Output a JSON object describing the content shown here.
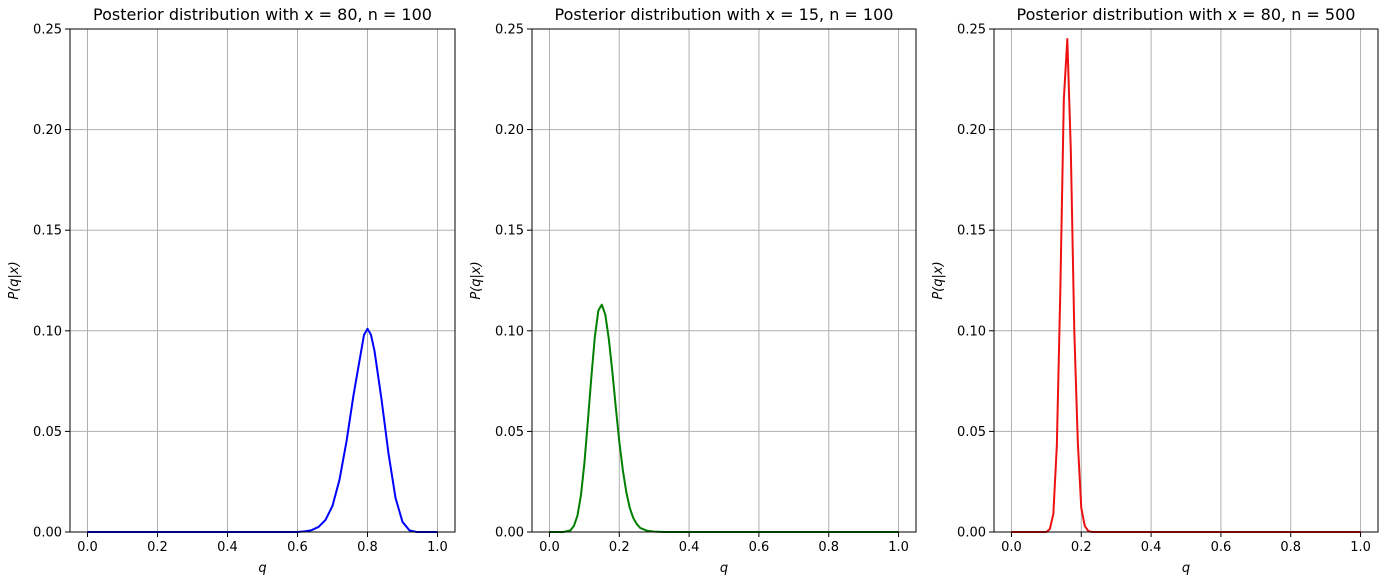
{
  "chart_data": [
    {
      "type": "line",
      "title": "Posterior distribution with x = 80, n = 100",
      "xlabel": "q",
      "ylabel": "P(q|x)",
      "xlim": [
        -0.05,
        1.05
      ],
      "ylim": [
        0,
        0.25
      ],
      "xticks": [
        "0.0",
        "0.2",
        "0.4",
        "0.6",
        "0.8",
        "1.0"
      ],
      "yticks": [
        "0.00",
        "0.05",
        "0.10",
        "0.15",
        "0.20",
        "0.25"
      ],
      "grid": true,
      "color": "#0000ff",
      "series": [
        {
          "x": [
            0.0,
            0.6,
            0.62,
            0.64,
            0.66,
            0.68,
            0.7,
            0.72,
            0.74,
            0.76,
            0.78,
            0.79,
            0.8,
            0.81,
            0.82,
            0.84,
            0.86,
            0.88,
            0.9,
            0.92,
            0.94,
            1.0
          ],
          "y": [
            0.0,
            0.0,
            0.0003,
            0.0009,
            0.0025,
            0.006,
            0.013,
            0.026,
            0.045,
            0.068,
            0.088,
            0.098,
            0.101,
            0.098,
            0.09,
            0.066,
            0.039,
            0.017,
            0.005,
            0.0008,
            0.0,
            0.0
          ]
        }
      ]
    },
    {
      "type": "line",
      "title": "Posterior distribution with x = 15, n = 100",
      "xlabel": "q",
      "ylabel": "P(q|x)",
      "xlim": [
        -0.05,
        1.05
      ],
      "ylim": [
        0,
        0.25
      ],
      "xticks": [
        "0.0",
        "0.2",
        "0.4",
        "0.6",
        "0.8",
        "1.0"
      ],
      "yticks": [
        "0.00",
        "0.05",
        "0.10",
        "0.15",
        "0.20",
        "0.25"
      ],
      "grid": true,
      "color": "#007f00",
      "series": [
        {
          "x": [
            0.0,
            0.04,
            0.06,
            0.07,
            0.08,
            0.09,
            0.1,
            0.11,
            0.12,
            0.13,
            0.14,
            0.15,
            0.16,
            0.17,
            0.18,
            0.19,
            0.2,
            0.21,
            0.22,
            0.23,
            0.24,
            0.25,
            0.26,
            0.28,
            0.3,
            0.33,
            1.0
          ],
          "y": [
            0.0,
            0.0,
            0.0008,
            0.003,
            0.008,
            0.018,
            0.034,
            0.055,
            0.077,
            0.097,
            0.11,
            0.113,
            0.108,
            0.096,
            0.08,
            0.062,
            0.045,
            0.031,
            0.02,
            0.012,
            0.007,
            0.004,
            0.002,
            0.0006,
            0.0002,
            0.0,
            0.0
          ]
        }
      ]
    },
    {
      "type": "line",
      "title": "Posterior distribution with x = 80, n = 500",
      "xlabel": "q",
      "ylabel": "P(q|x)",
      "xlim": [
        -0.05,
        1.05
      ],
      "ylim": [
        0,
        0.25
      ],
      "xticks": [
        "0.0",
        "0.2",
        "0.4",
        "0.6",
        "0.8",
        "1.0"
      ],
      "yticks": [
        "0.00",
        "0.05",
        "0.10",
        "0.15",
        "0.20",
        "0.25"
      ],
      "grid": true,
      "color": "#ee1111",
      "series": [
        {
          "x": [
            0.0,
            0.1,
            0.11,
            0.12,
            0.13,
            0.14,
            0.15,
            0.16,
            0.17,
            0.18,
            0.19,
            0.2,
            0.21,
            0.22,
            0.23,
            1.0
          ],
          "y": [
            0.0,
            0.0,
            0.0015,
            0.009,
            0.043,
            0.12,
            0.215,
            0.245,
            0.19,
            0.1,
            0.045,
            0.012,
            0.003,
            0.0005,
            0.0,
            0.0
          ]
        }
      ]
    }
  ]
}
